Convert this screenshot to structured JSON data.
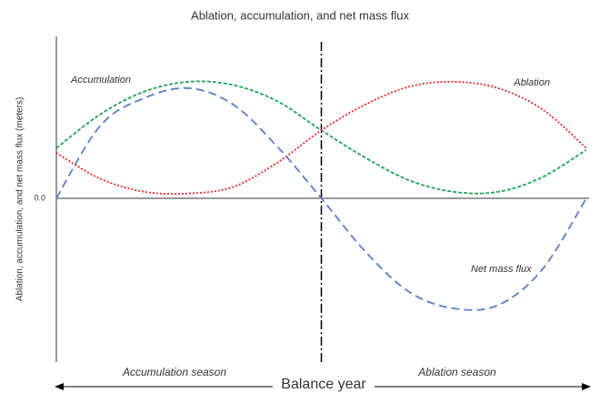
{
  "chart_data": {
    "type": "line",
    "title": "Ablation, accumulation, and net mass flux",
    "y_label": "Ablation, accumulation, and net mass flux (meters)",
    "x_label": "Balance year",
    "season_labels": [
      "Accumulation season",
      "Ablation season"
    ],
    "xlim": [
      0,
      12
    ],
    "ylim": [
      -1,
      1
    ],
    "yticks": [
      {
        "value": 0,
        "label": "0.0"
      }
    ],
    "vline_x": 6,
    "x": [
      0,
      1,
      2,
      3,
      4,
      5,
      6,
      7,
      8,
      9,
      10,
      11,
      12
    ],
    "series": [
      {
        "name": "Accumulation",
        "color": "#1fa35b",
        "values": [
          0.31,
          0.52,
          0.66,
          0.72,
          0.7,
          0.6,
          0.42,
          0.25,
          0.11,
          0.04,
          0.04,
          0.13,
          0.3
        ]
      },
      {
        "name": "Ablation",
        "color": "#e8262a",
        "values": [
          0.28,
          0.12,
          0.04,
          0.03,
          0.07,
          0.22,
          0.42,
          0.58,
          0.69,
          0.72,
          0.68,
          0.55,
          0.31
        ]
      },
      {
        "name": "Net mass flux",
        "color": "#5b7fc7",
        "values": [
          0.0,
          0.45,
          0.62,
          0.68,
          0.58,
          0.32,
          0.0,
          -0.33,
          -0.58,
          -0.68,
          -0.66,
          -0.44,
          0.0
        ]
      }
    ]
  }
}
